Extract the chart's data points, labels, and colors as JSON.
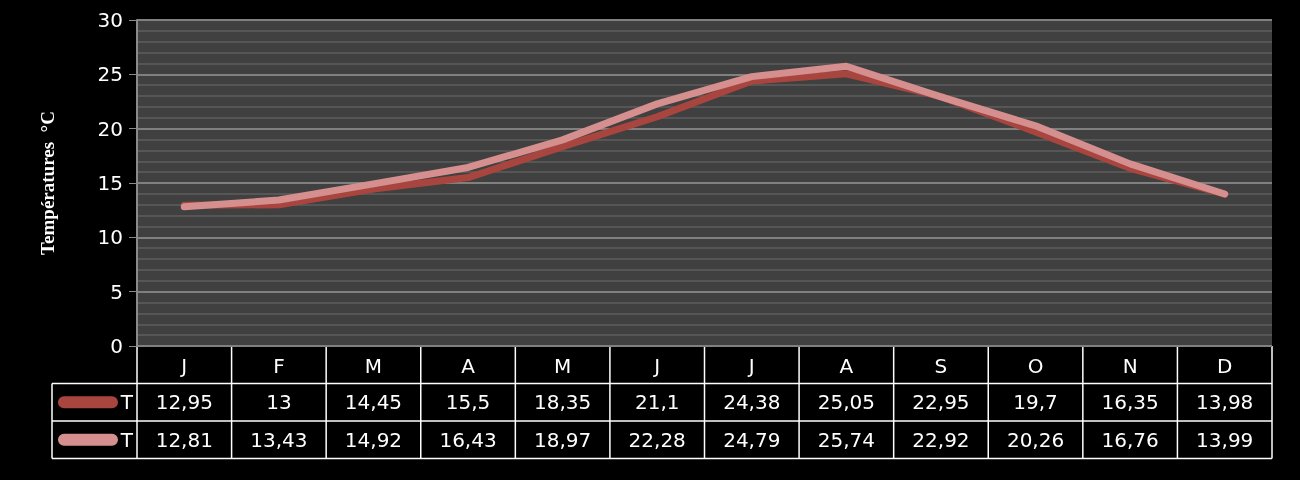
{
  "chart_data": {
    "type": "line",
    "ylabel": "Températures  °C",
    "categories": [
      "J",
      "F",
      "M",
      "A",
      "M",
      "J",
      "J",
      "A",
      "S",
      "O",
      "N",
      "D"
    ],
    "series": [
      {
        "name": "T",
        "color": "#a9453f",
        "values": [
          12.95,
          13,
          14.45,
          15.5,
          18.35,
          21.1,
          24.38,
          25.05,
          22.95,
          19.7,
          16.35,
          13.98
        ],
        "value_labels": [
          "12,95",
          "13",
          "14,45",
          "15,5",
          "18,35",
          "21,1",
          "24,38",
          "25,05",
          "22,95",
          "19,7",
          "16,35",
          "13,98"
        ]
      },
      {
        "name": "T",
        "color": "#d58f8e",
        "values": [
          12.81,
          13.43,
          14.92,
          16.43,
          18.97,
          22.28,
          24.79,
          25.74,
          22.92,
          20.26,
          16.76,
          13.99
        ],
        "value_labels": [
          "12,81",
          "13,43",
          "14,92",
          "16,43",
          "18,97",
          "22,28",
          "24,79",
          "25,74",
          "22,92",
          "20,26",
          "16,76",
          "13,99"
        ]
      }
    ],
    "ylim": [
      0,
      30
    ],
    "yticks": [
      0,
      5,
      10,
      15,
      20,
      25,
      30
    ],
    "grid": "y",
    "legend": "bottom left",
    "marker": "none",
    "line_style": "solid"
  }
}
